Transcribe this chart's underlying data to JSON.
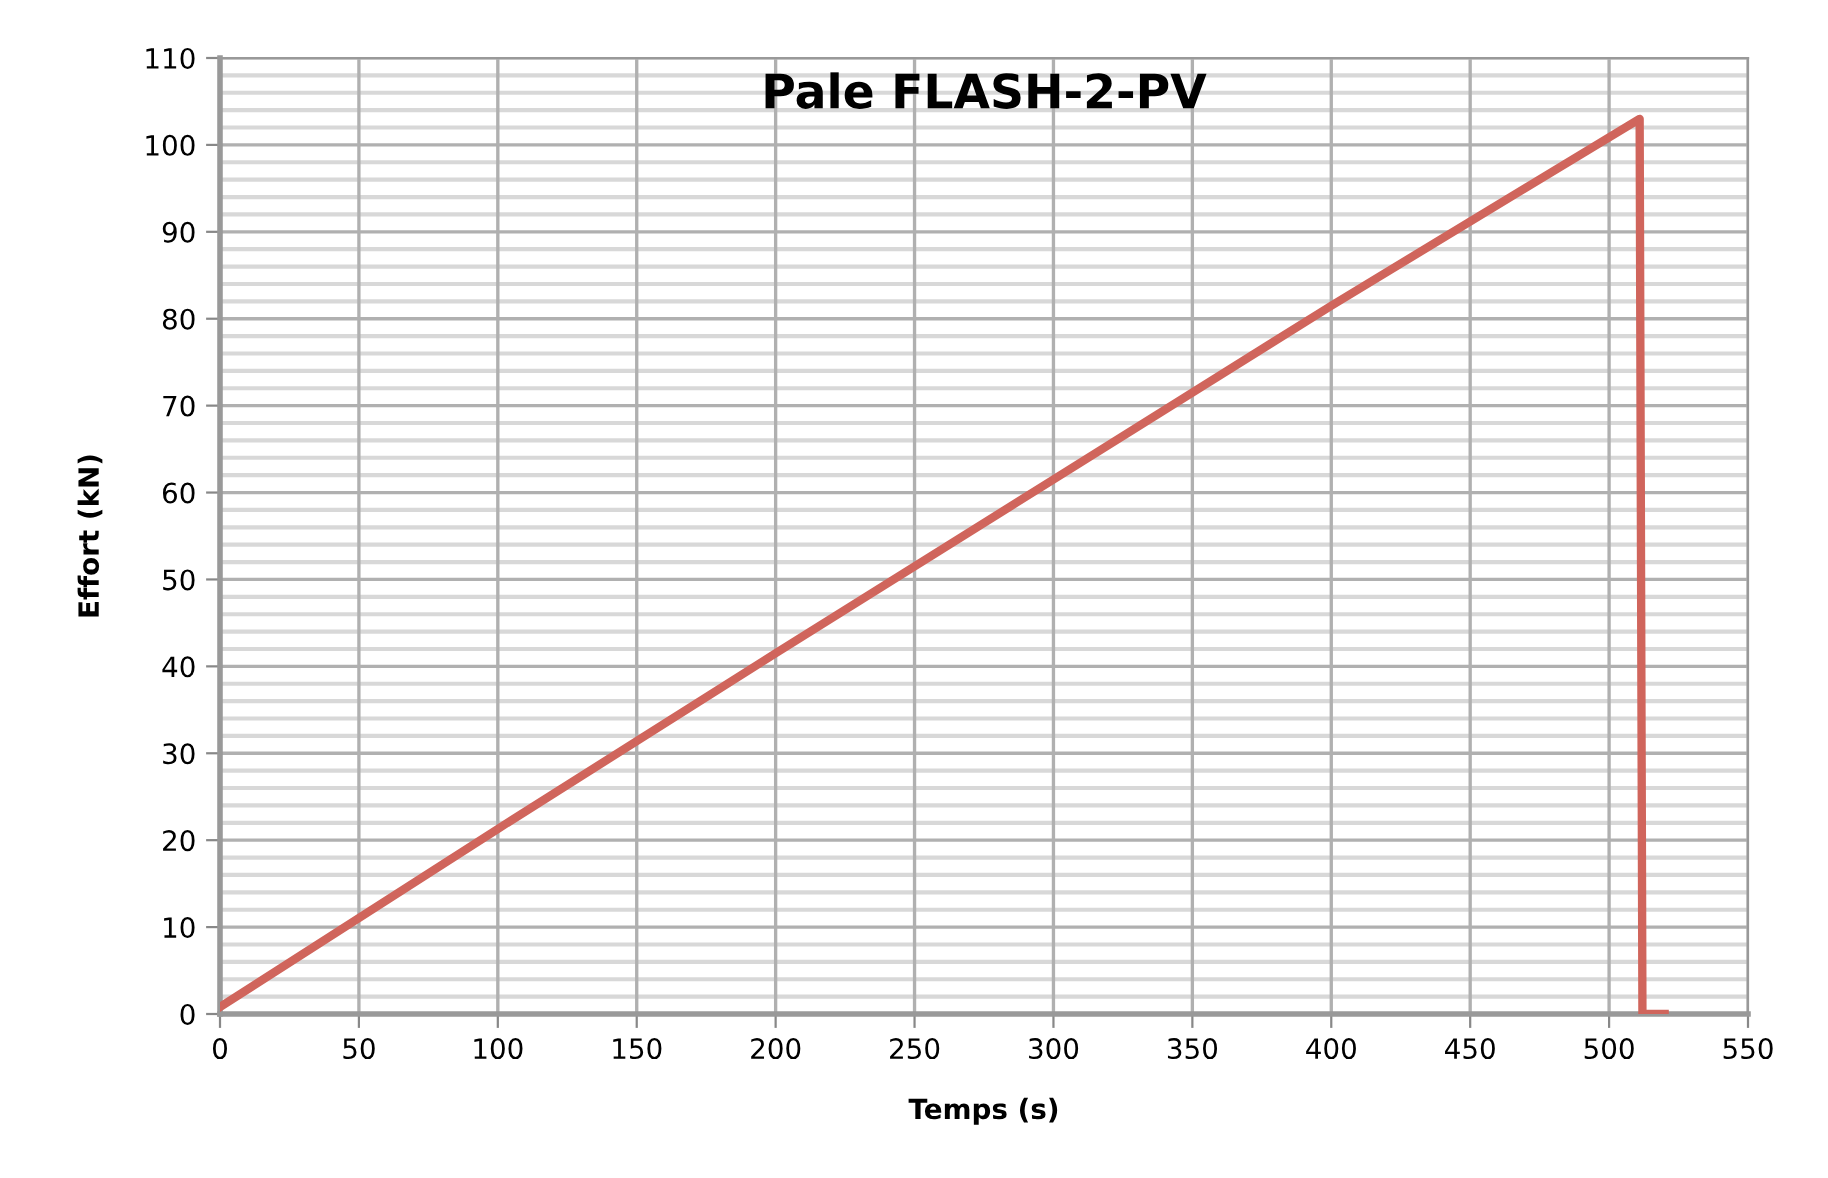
{
  "chart_data": {
    "type": "line",
    "title": "Pale FLASH-2-PV",
    "xlabel": "Temps (s)",
    "ylabel": "Effort (kN)",
    "series": [
      {
        "color": "#d0655c",
        "x": [
          0,
          100,
          200,
          300,
          400,
          511,
          512,
          520
        ],
        "values": [
          0.8,
          21.3,
          41.5,
          61.5,
          81.5,
          103,
          0,
          0
        ]
      }
    ],
    "xlim": [
      0,
      550
    ],
    "xticks": [
      0,
      50,
      100,
      150,
      200,
      250,
      300,
      350,
      400,
      450,
      500,
      550
    ],
    "ylim": [
      0,
      110
    ],
    "yticks": [
      0,
      {
        "value": 2,
        "label": null
      },
      {
        "value": 4,
        "label": null
      },
      {
        "value": 6,
        "label": null
      },
      {
        "value": 8,
        "label": null
      },
      10,
      {
        "value": 12,
        "label": null
      },
      {
        "value": 14,
        "label": null
      },
      {
        "value": 16,
        "label": null
      },
      {
        "value": 18,
        "label": null
      },
      20,
      {
        "value": 22,
        "label": null
      },
      {
        "value": 24,
        "label": null
      },
      {
        "value": 26,
        "label": null
      },
      {
        "value": 28,
        "label": null
      },
      30,
      {
        "value": 32,
        "label": null
      },
      {
        "value": 34,
        "label": null
      },
      {
        "value": 36,
        "label": null
      },
      {
        "value": 38,
        "label": null
      },
      40,
      {
        "value": 42,
        "label": null
      },
      {
        "value": 44,
        "label": null
      },
      {
        "value": 46,
        "label": null
      },
      {
        "value": 48,
        "label": null
      },
      50,
      {
        "value": 52,
        "label": null
      },
      {
        "value": 54,
        "label": null
      },
      {
        "value": 56,
        "label": null
      },
      {
        "value": 58,
        "label": null
      },
      60,
      {
        "value": 62,
        "label": null
      },
      {
        "value": 64,
        "label": null
      },
      {
        "value": 66,
        "label": null
      },
      {
        "value": 68,
        "label": null
      },
      70,
      {
        "value": 72,
        "label": null
      },
      {
        "value": 74,
        "label": null
      },
      {
        "value": 76,
        "label": null
      },
      {
        "value": 78,
        "label": null
      },
      80,
      {
        "value": 82,
        "label": null
      },
      {
        "value": 84,
        "label": null
      },
      {
        "value": 86,
        "label": null
      },
      {
        "value": 88,
        "label": null
      },
      90,
      {
        "value": 92,
        "label": null
      },
      {
        "value": 94,
        "label": null
      },
      {
        "value": 96,
        "label": null
      },
      {
        "value": 98,
        "label": null
      },
      100,
      {
        "value": 102,
        "label": null
      },
      {
        "value": 104,
        "label": null
      },
      {
        "value": 106,
        "label": null
      },
      {
        "value": 108,
        "label": null
      },
      110
    ],
    "grid": true,
    "marker": "none",
    "line_style": "solid"
  }
}
